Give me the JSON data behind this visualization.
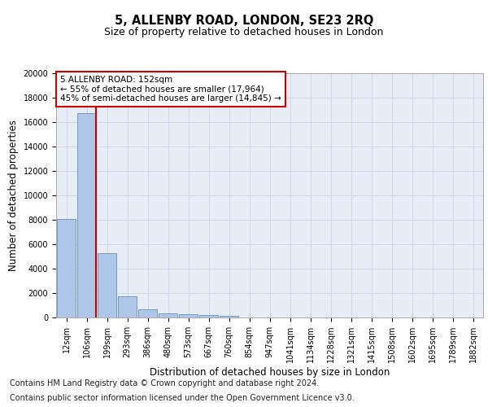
{
  "title_line1": "5, ALLENBY ROAD, LONDON, SE23 2RQ",
  "title_line2": "Size of property relative to detached houses in London",
  "xlabel": "Distribution of detached houses by size in London",
  "ylabel": "Number of detached properties",
  "bar_labels": [
    "12sqm",
    "106sqm",
    "199sqm",
    "293sqm",
    "386sqm",
    "480sqm",
    "573sqm",
    "667sqm",
    "760sqm",
    "854sqm",
    "947sqm",
    "1041sqm",
    "1134sqm",
    "1228sqm",
    "1321sqm",
    "1415sqm",
    "1508sqm",
    "1602sqm",
    "1695sqm",
    "1789sqm",
    "1882sqm"
  ],
  "bar_values": [
    8100,
    16700,
    5300,
    1750,
    650,
    350,
    270,
    200,
    150,
    0,
    0,
    0,
    0,
    0,
    0,
    0,
    0,
    0,
    0,
    0,
    0
  ],
  "bar_color": "#aec6e8",
  "bar_edge_color": "#5580b0",
  "annotation_text": "5 ALLENBY ROAD: 152sqm\n← 55% of detached houses are smaller (17,964)\n45% of semi-detached houses are larger (14,845) →",
  "annotation_box_color": "#ffffff",
  "annotation_box_edge": "#cc0000",
  "vline_color": "#cc0000",
  "ylim": [
    0,
    20000
  ],
  "yticks": [
    0,
    2000,
    4000,
    6000,
    8000,
    10000,
    12000,
    14000,
    16000,
    18000,
    20000
  ],
  "grid_color": "#c8d4e8",
  "bg_color": "#e8edf5",
  "footer_line1": "Contains HM Land Registry data © Crown copyright and database right 2024.",
  "footer_line2": "Contains public sector information licensed under the Open Government Licence v3.0.",
  "title_fontsize": 10.5,
  "subtitle_fontsize": 9,
  "axis_label_fontsize": 8.5,
  "tick_fontsize": 7,
  "annotation_fontsize": 7.5,
  "footer_fontsize": 7
}
